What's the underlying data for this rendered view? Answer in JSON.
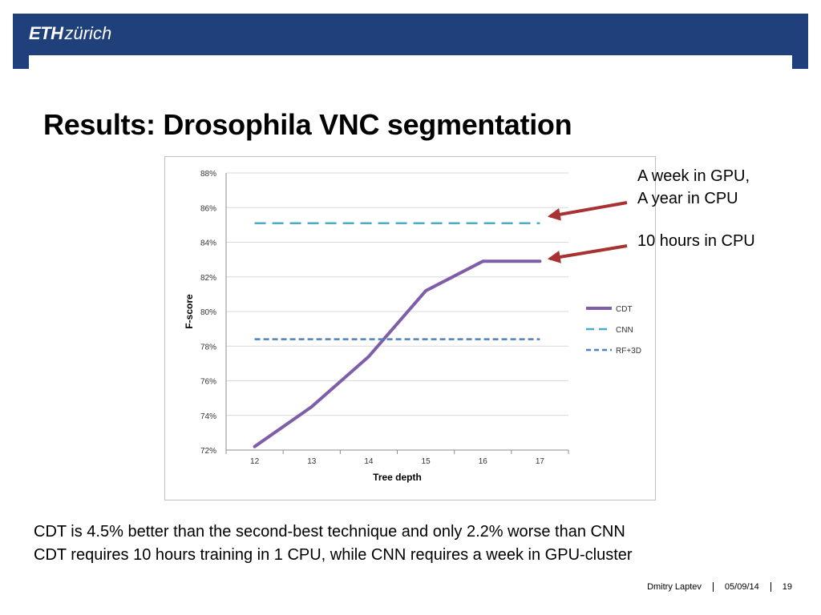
{
  "header": {
    "logo_bold": "ETH",
    "logo_rest": "zürich",
    "color": "#1f407a"
  },
  "slide": {
    "title": "Results: Drosophila VNC segmentation"
  },
  "annotations": {
    "note_1_line_1": "A week in GPU,",
    "note_1_line_2": "A year in CPU",
    "note_2": "10 hours in CPU",
    "arrow_color": "#a83232"
  },
  "summary": {
    "line_1": "CDT is 4.5% better than the second-best technique and only 2.2% worse than CNN",
    "line_2": "CDT requires 10 hours training in 1 CPU, while CNN requires a week in GPU-cluster"
  },
  "footer": {
    "author": "Dmitry Laptev",
    "date": "05/09/14",
    "page": "19"
  },
  "chart_data": {
    "type": "line",
    "xlabel": "Tree depth",
    "ylabel": "F-score",
    "categories": [
      "12",
      "13",
      "14",
      "15",
      "16",
      "17"
    ],
    "ylim": [
      72,
      88
    ],
    "yticks": [
      "72%",
      "74%",
      "76%",
      "78%",
      "80%",
      "82%",
      "84%",
      "86%",
      "88%"
    ],
    "grid": true,
    "legend_position": "right",
    "series": [
      {
        "name": "CDT",
        "values": [
          72.2,
          74.5,
          77.4,
          81.2,
          82.9,
          82.9
        ],
        "color": "#7e5ea8",
        "style": "solid"
      },
      {
        "name": "CNN",
        "values": [
          85.1,
          85.1,
          85.1,
          85.1,
          85.1,
          85.1
        ],
        "color": "#4bacc6",
        "style": "dashed"
      },
      {
        "name": "RF+3D",
        "values": [
          78.4,
          78.4,
          78.4,
          78.4,
          78.4,
          78.4
        ],
        "color": "#4f81bd",
        "style": "dashed"
      }
    ]
  }
}
